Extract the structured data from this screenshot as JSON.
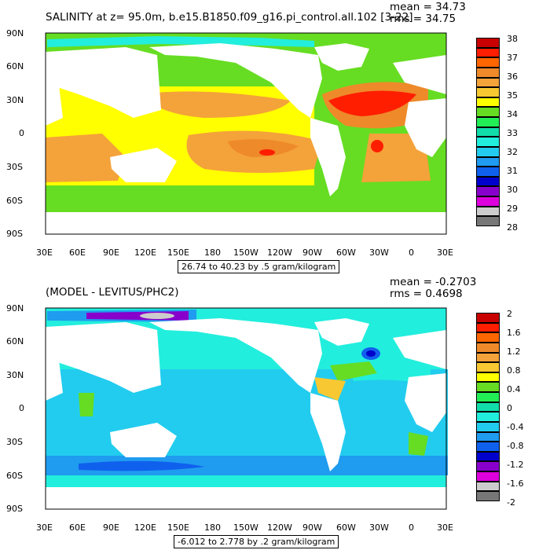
{
  "panels": [
    {
      "title": "SALINITY at z=  95.0m, b.e15.B1850.f09_g16.pi_control.all.102 [3-22]",
      "stats": {
        "mean": "mean = 34.73",
        "rms": "rms = 34.75"
      },
      "caption": "26.74 to 40.23 by .5 gram/kilogram",
      "lat_labels": [
        "90N",
        "60N",
        "30N",
        "0",
        "30S",
        "60S",
        "90S"
      ],
      "lon_labels": [
        "30E",
        "60E",
        "90E",
        "120E",
        "150E",
        "180",
        "150W",
        "120W",
        "90W",
        "60W",
        "30W",
        "0",
        "30E"
      ],
      "colorbar": {
        "labels": [
          "38",
          "37",
          "36",
          "35",
          "34",
          "33",
          "32",
          "31",
          "30",
          "29",
          "28"
        ],
        "colors": [
          "#c80000",
          "#ff1e00",
          "#ff6600",
          "#ee8a2a",
          "#f4a23a",
          "#f7c832",
          "#ffff00",
          "#66dd22",
          "#22ee55",
          "#11ddaa",
          "#22eedd",
          "#22ccee",
          "#1f9bef",
          "#1060ee",
          "#0000cc",
          "#8800cc",
          "#dd00dd",
          "#cccccc",
          "#777777"
        ]
      }
    },
    {
      "title": "(MODEL - LEVITUS/PHC2)",
      "stats": {
        "mean": "mean = -0.2703",
        "rms": "rms = 0.4698"
      },
      "caption": "-6.012 to 2.778 by .2 gram/kilogram",
      "lat_labels": [
        "90N",
        "60N",
        "30N",
        "0",
        "30S",
        "60S",
        "90S"
      ],
      "lon_labels": [
        "30E",
        "60E",
        "90E",
        "120E",
        "150E",
        "180",
        "150W",
        "120W",
        "90W",
        "60W",
        "30W",
        "0",
        "30E"
      ],
      "colorbar": {
        "labels": [
          "2",
          "1.6",
          "1.2",
          "0.8",
          "0.4",
          "0",
          "-0.4",
          "-0.8",
          "-1.2",
          "-1.6",
          "-2"
        ],
        "colors": [
          "#c80000",
          "#ff1e00",
          "#ff6600",
          "#ee8a2a",
          "#f4a23a",
          "#f7c832",
          "#ffff00",
          "#66dd22",
          "#22ee55",
          "#11ddaa",
          "#22eedd",
          "#22ccee",
          "#1f9bef",
          "#1060ee",
          "#0000cc",
          "#8800cc",
          "#dd00dd",
          "#cccccc",
          "#777777"
        ]
      }
    }
  ]
}
